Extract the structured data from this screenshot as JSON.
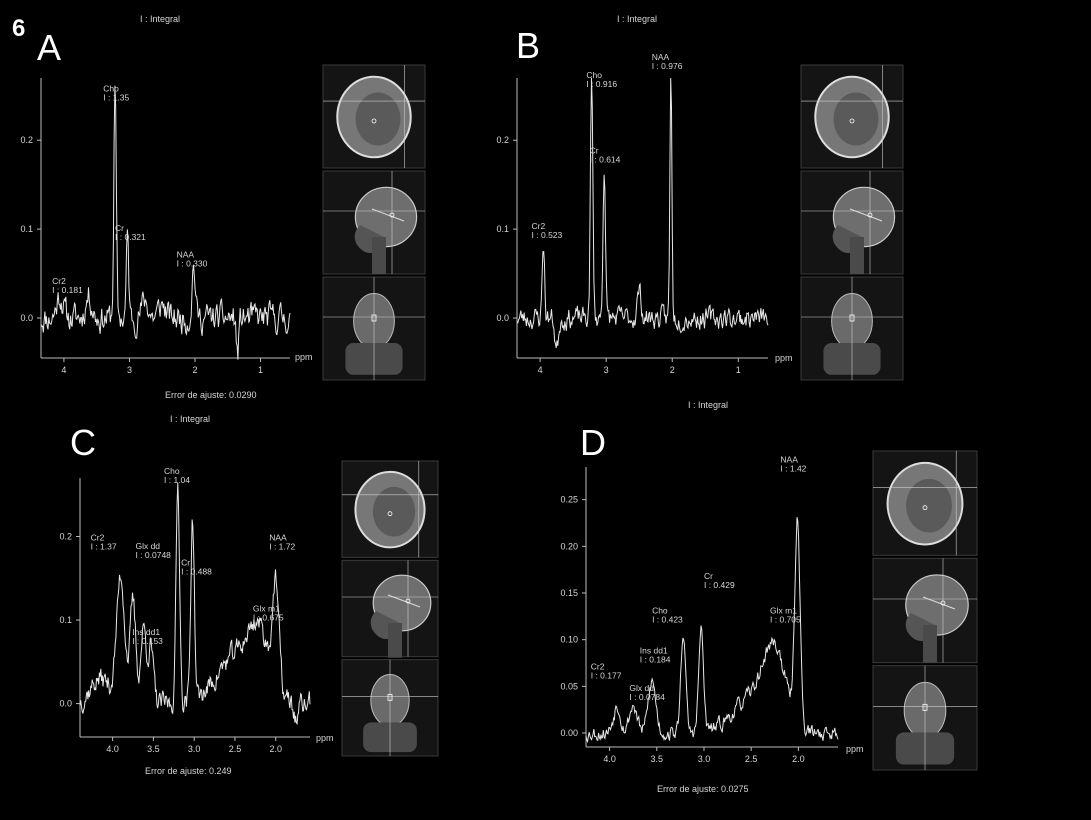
{
  "figure_number": "6",
  "chart_data": [
    {
      "type": "line",
      "panel": "A",
      "top_label": "I : Integral",
      "xlabel": "ppm",
      "xlim": [
        4.35,
        0.55
      ],
      "ylim": [
        -0.045,
        0.27
      ],
      "x_ticks": [
        4,
        3,
        2,
        1
      ],
      "x_tick_labels": [
        "4",
        "3",
        "2",
        "1"
      ],
      "y_ticks": [
        0,
        0.1,
        0.2
      ],
      "y_tick_labels": [
        "0.0",
        "0.1",
        "0.2"
      ],
      "fit_error": "Error de ajuste: 0.0290",
      "peaks": [
        {
          "x": 4.06,
          "w": 0.05,
          "h": 0.025
        },
        {
          "x": 3.62,
          "w": 0.05,
          "h": 0.025
        },
        {
          "x": 3.22,
          "w": 0.018,
          "h": 0.26
        },
        {
          "x": 3.03,
          "w": 0.018,
          "h": 0.09
        },
        {
          "x": 2.76,
          "w": 0.05,
          "h": 0.02
        },
        {
          "x": 2.5,
          "w": 0.05,
          "h": 0.015
        },
        {
          "x": 2.02,
          "w": 0.025,
          "h": 0.06
        },
        {
          "x": 1.35,
          "w": 0.02,
          "h": -0.04
        }
      ],
      "noise": 0.012,
      "seed": 11,
      "annotations": [
        {
          "name": "Cr2",
          "value": "I : 0.181",
          "x": 4.18,
          "y": 0.038
        },
        {
          "name": "Cho",
          "value": "I : 1.35",
          "x": 3.4,
          "y": 0.255
        },
        {
          "name": "Cr",
          "value": "I : 0.321",
          "x": 3.22,
          "y": 0.098
        },
        {
          "name": "NAA",
          "value": "I : 0.330",
          "x": 2.28,
          "y": 0.068
        }
      ],
      "thumbnails": [
        "axial",
        "sagittal",
        "coronal"
      ]
    },
    {
      "type": "line",
      "panel": "B",
      "top_label": "I : Integral",
      "xlabel": "ppm",
      "xlim": [
        4.35,
        0.55
      ],
      "ylim": [
        -0.045,
        0.27
      ],
      "x_ticks": [
        4,
        3,
        2,
        1
      ],
      "x_tick_labels": [
        "4",
        "3",
        "2",
        "1"
      ],
      "y_ticks": [
        0,
        0.1,
        0.2
      ],
      "y_tick_labels": [
        "0.0",
        "0.1",
        "0.2"
      ],
      "fit_error": "",
      "peaks": [
        {
          "x": 3.95,
          "w": 0.018,
          "h": 0.085
        },
        {
          "x": 3.75,
          "w": 0.025,
          "h": -0.035
        },
        {
          "x": 3.22,
          "w": 0.018,
          "h": 0.27
        },
        {
          "x": 3.03,
          "w": 0.018,
          "h": 0.175
        },
        {
          "x": 2.5,
          "w": 0.03,
          "h": 0.03
        },
        {
          "x": 2.02,
          "w": 0.015,
          "h": 0.28
        }
      ],
      "noise": 0.009,
      "seed": 23,
      "annotations": [
        {
          "name": "Cr2",
          "value": "I : 0.523",
          "x": 4.13,
          "y": 0.1
        },
        {
          "name": "Cho",
          "value": "I : 0.916",
          "x": 3.3,
          "y": 0.27
        },
        {
          "name": "Cr",
          "value": "I : 0.614",
          "x": 3.25,
          "y": 0.185
        },
        {
          "name": "NAA",
          "value": "I : 0.976",
          "x": 2.31,
          "y": 0.29
        }
      ],
      "thumbnails": [
        "axial",
        "sagittal",
        "coronal"
      ]
    },
    {
      "type": "line",
      "panel": "C",
      "top_label": "I : Integral",
      "xlabel": "ppm",
      "xlim": [
        4.4,
        1.58
      ],
      "ylim": [
        -0.04,
        0.27
      ],
      "x_ticks": [
        4.0,
        3.5,
        3.0,
        2.5,
        2.0
      ],
      "x_tick_labels": [
        "4.0",
        "3.5",
        "3.0",
        "2.5",
        "2.0"
      ],
      "y_ticks": [
        0,
        0.1,
        0.2
      ],
      "y_tick_labels": [
        "0.0",
        "0.1",
        "0.2"
      ],
      "fit_error": "Error de ajuste: 0.249",
      "peaks": [
        {
          "x": 4.15,
          "w": 0.12,
          "h": 0.03
        },
        {
          "x": 3.9,
          "w": 0.05,
          "h": 0.15
        },
        {
          "x": 3.75,
          "w": 0.035,
          "h": 0.12
        },
        {
          "x": 3.62,
          "w": 0.035,
          "h": 0.09
        },
        {
          "x": 3.53,
          "w": 0.03,
          "h": 0.065
        },
        {
          "x": 3.2,
          "w": 0.022,
          "h": 0.26
        },
        {
          "x": 3.02,
          "w": 0.022,
          "h": 0.22
        },
        {
          "x": 2.45,
          "w": 0.25,
          "h": 0.06
        },
        {
          "x": 2.2,
          "w": 0.12,
          "h": 0.06
        },
        {
          "x": 2.0,
          "w": 0.04,
          "h": 0.12
        },
        {
          "x": 1.75,
          "w": 0.03,
          "h": -0.02
        }
      ],
      "noise": 0.01,
      "seed": 37,
      "annotations": [
        {
          "name": "Cr2",
          "value": "I : 1.37",
          "x": 4.27,
          "y": 0.195
        },
        {
          "name": "Glx dd",
          "value": "I : 0.0748",
          "x": 3.72,
          "y": 0.185
        },
        {
          "name": "Ins dd1",
          "value": "I : 0.153",
          "x": 3.76,
          "y": 0.082
        },
        {
          "name": "Cho",
          "value": "I : 1.04",
          "x": 3.37,
          "y": 0.275
        },
        {
          "name": "Cr",
          "value": "I : 0.488",
          "x": 3.16,
          "y": 0.165
        },
        {
          "name": "Glx m1",
          "value": "I : 0.675",
          "x": 2.28,
          "y": 0.11
        },
        {
          "name": "NAA",
          "value": "I : 1.72",
          "x": 2.08,
          "y": 0.195
        }
      ],
      "thumbnails": [
        "axial",
        "sagittal",
        "coronal"
      ]
    },
    {
      "type": "line",
      "panel": "D",
      "top_label": "I : Integral",
      "xlabel": "ppm",
      "xlim": [
        4.25,
        1.58
      ],
      "ylim": [
        -0.015,
        0.285
      ],
      "x_ticks": [
        4.0,
        3.5,
        3.0,
        2.5,
        2.0
      ],
      "x_tick_labels": [
        "4.0",
        "3.5",
        "3.0",
        "2.5",
        "2.0"
      ],
      "y_ticks": [
        0,
        0.05,
        0.1,
        0.15,
        0.2,
        0.25
      ],
      "y_tick_labels": [
        "0.00",
        "0.05",
        "0.10",
        "0.15",
        "0.20",
        "0.25"
      ],
      "fit_error": "Error de ajuste: 0.0275",
      "peaks": [
        {
          "x": 3.92,
          "w": 0.04,
          "h": 0.03
        },
        {
          "x": 3.75,
          "w": 0.04,
          "h": 0.03
        },
        {
          "x": 3.55,
          "w": 0.04,
          "h": 0.055
        },
        {
          "x": 3.22,
          "w": 0.025,
          "h": 0.11
        },
        {
          "x": 3.03,
          "w": 0.025,
          "h": 0.11
        },
        {
          "x": 2.5,
          "w": 0.2,
          "h": 0.035
        },
        {
          "x": 2.25,
          "w": 0.12,
          "h": 0.08
        },
        {
          "x": 2.01,
          "w": 0.028,
          "h": 0.22
        }
      ],
      "noise": 0.006,
      "seed": 53,
      "annotations": [
        {
          "name": "Cr2",
          "value": "I : 0.177",
          "x": 4.2,
          "y": 0.068
        },
        {
          "name": "Glx dd",
          "value": "I : 0.0784",
          "x": 3.79,
          "y": 0.045
        },
        {
          "name": "Ins dd1",
          "value": "I : 0.184",
          "x": 3.68,
          "y": 0.085
        },
        {
          "name": "Cho",
          "value": "I : 0.423",
          "x": 3.55,
          "y": 0.128
        },
        {
          "name": "Cr",
          "value": "I : 0.429",
          "x": 3.0,
          "y": 0.165
        },
        {
          "name": "Glx m1",
          "value": "I : 0.705",
          "x": 2.3,
          "y": 0.128
        },
        {
          "name": "NAA",
          "value": "I : 1.42",
          "x": 2.19,
          "y": 0.29
        }
      ],
      "thumbnails": [
        "axial",
        "sagittal",
        "coronal"
      ]
    }
  ]
}
